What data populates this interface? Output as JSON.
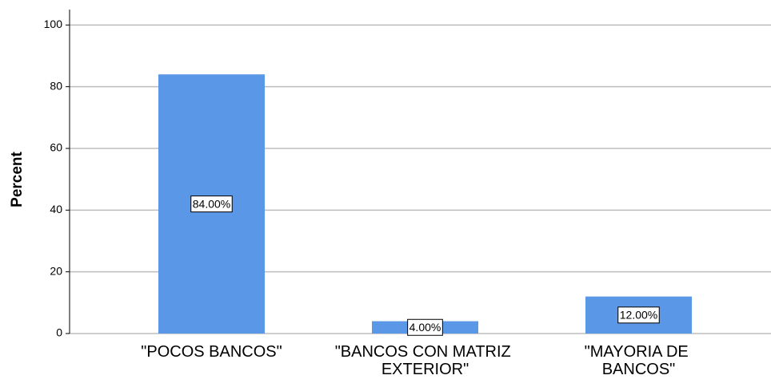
{
  "chart_data": {
    "type": "bar",
    "y_label": "Percent",
    "categories": [
      "\"POCOS BANCOS\"",
      "\"BANCOS CON MATRIZ EXTERIOR\"",
      "\"MAYORIA DE BANCOS\""
    ],
    "values": [
      84,
      4,
      12
    ],
    "value_labels": [
      "84.00%",
      "4.00%",
      "12.00%"
    ],
    "color": "#5a97e6",
    "ylim": [
      0,
      105
    ],
    "yticks": [
      0,
      20,
      40,
      60,
      80,
      100
    ],
    "grid": true
  }
}
